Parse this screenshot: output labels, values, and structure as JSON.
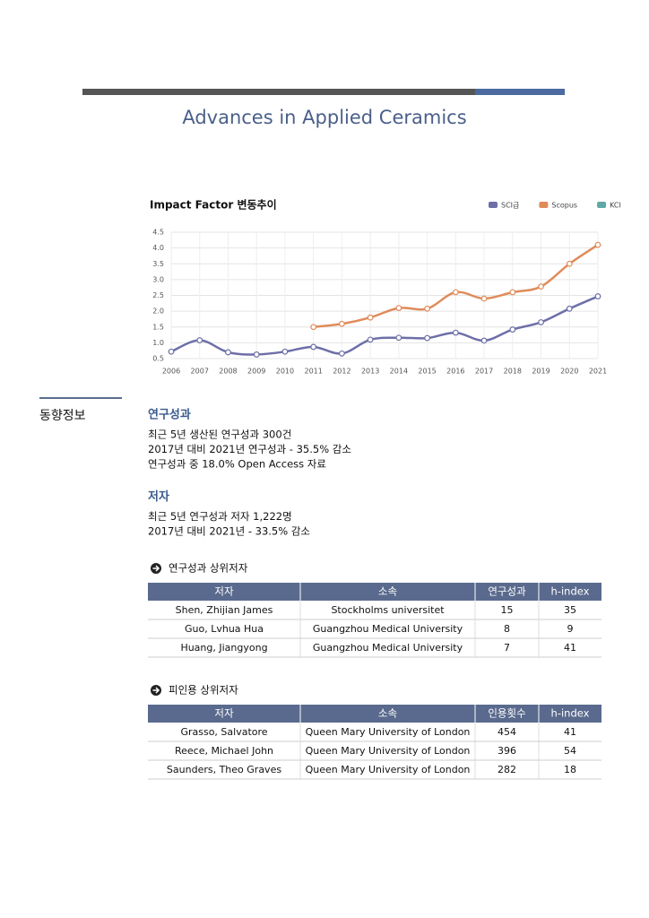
{
  "header": {
    "title": "Advances in Applied Ceramics"
  },
  "chart_data": {
    "type": "line",
    "title": "Impact Factor 변동추이",
    "categories": [
      "2006",
      "2007",
      "2008",
      "2009",
      "2010",
      "2011",
      "2012",
      "2013",
      "2014",
      "2015",
      "2016",
      "2017",
      "2018",
      "2019",
      "2020",
      "2021"
    ],
    "series": [
      {
        "name": "SCI급",
        "color": "#6e6fa8",
        "values": [
          0.72,
          1.08,
          0.7,
          0.63,
          0.72,
          0.87,
          0.66,
          1.1,
          1.16,
          1.15,
          1.32,
          1.07,
          1.42,
          1.65,
          2.08,
          2.47
        ]
      },
      {
        "name": "Scopus",
        "color": "#e08b5a",
        "values": [
          null,
          null,
          null,
          null,
          null,
          1.5,
          1.6,
          1.8,
          2.1,
          2.08,
          2.6,
          2.4,
          2.6,
          2.78,
          3.5,
          4.1
        ]
      },
      {
        "name": "KCI",
        "color": "#5fa8a8",
        "values": [
          null,
          null,
          null,
          null,
          null,
          null,
          null,
          null,
          null,
          null,
          null,
          null,
          null,
          null,
          null,
          null
        ]
      }
    ],
    "ylim": [
      0.5,
      4.5
    ],
    "yticks": [
      0.5,
      {
        "value": 1,
        "label": "1.0"
      },
      1.5,
      {
        "value": 2,
        "label": "2.0"
      },
      2.5,
      {
        "value": 3,
        "label": "3.0"
      },
      3.5,
      {
        "value": 4,
        "label": "4.0"
      },
      4.5
    ],
    "grid": true
  },
  "sidebar": {
    "label": "동향정보"
  },
  "sections": [
    {
      "title": "연구성과",
      "lines": [
        "최근 5년 생산된 연구성과 300건",
        "2017년 대비 2021년 연구성과 - 35.5% 감소",
        "연구성과 중 18.0% Open Access 자료"
      ]
    },
    {
      "title": "저자",
      "lines": [
        "최근 5년 연구성과 저자 1,222명",
        "2017년 대비 2021년 - 33.5% 감소"
      ]
    }
  ],
  "tables": [
    {
      "title": "연구성과 상위저자",
      "columns": [
        "저자",
        "소속",
        "연구성과",
        "h-index"
      ],
      "rows": [
        [
          "Shen, Zhijian James",
          "Stockholms universitet",
          15,
          35
        ],
        [
          "Guo, Lvhua Hua",
          "Guangzhou Medical University",
          8,
          9
        ],
        [
          "Huang, Jiangyong",
          "Guangzhou Medical University",
          7,
          41
        ]
      ]
    },
    {
      "title": "피인용 상위저자",
      "columns": [
        "저자",
        "소속",
        "인용횟수",
        "h-index"
      ],
      "rows": [
        [
          "Grasso, Salvatore",
          "Queen Mary University of London",
          454,
          41
        ],
        [
          "Reece, Michael John",
          "Queen Mary University of London",
          396,
          54
        ],
        [
          "Saunders, Theo Graves",
          "Queen Mary University of London",
          282,
          18
        ]
      ]
    }
  ]
}
